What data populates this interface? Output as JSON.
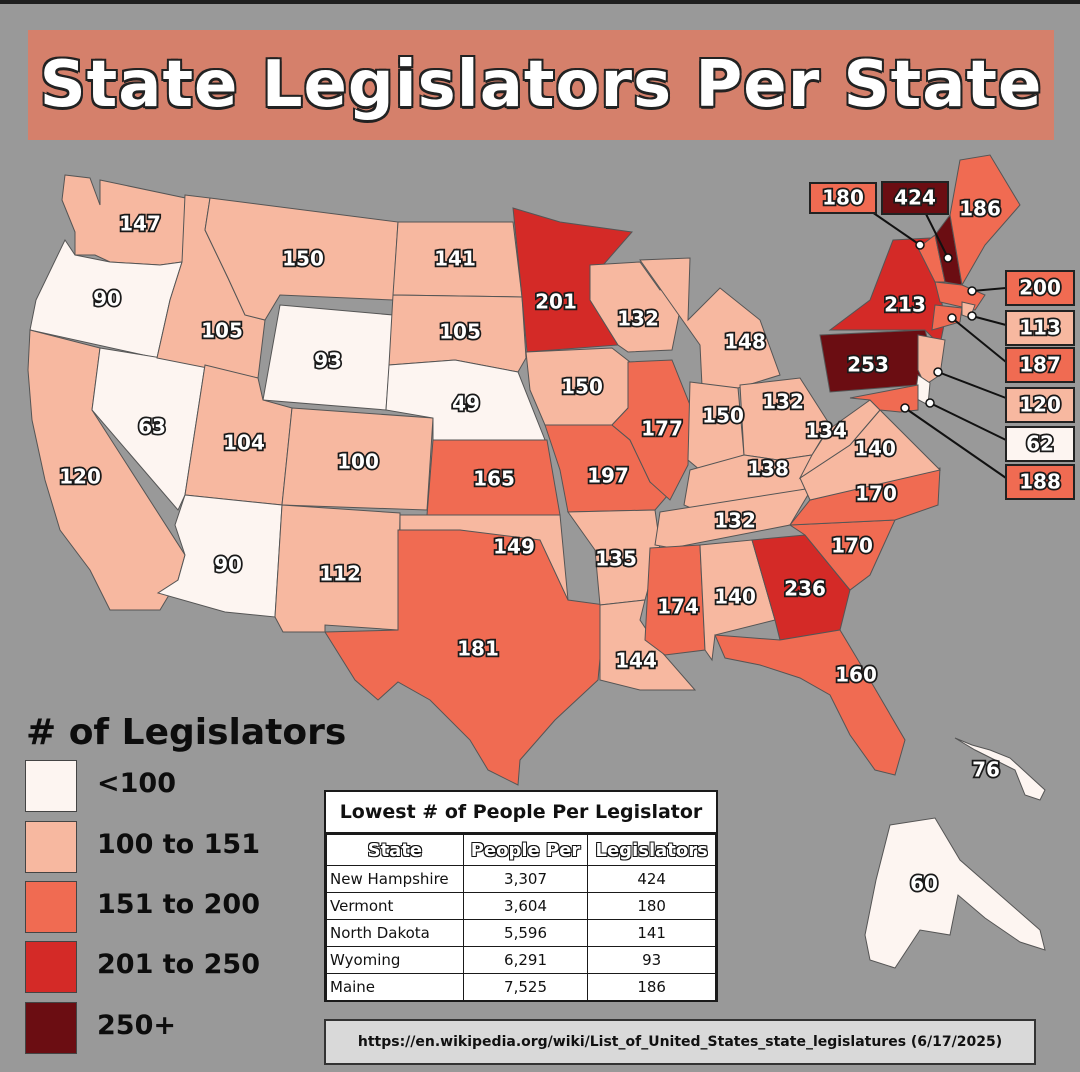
{
  "title": "State Legislators Per State",
  "colors": {
    "background": "#999999",
    "title_band": "#d5806b",
    "bin_lt100": "#fdf5f1",
    "bin_100_151": "#f7b8a0",
    "bin_151_200": "#f06b52",
    "bin_201_250": "#d42a27",
    "bin_250plus": "#6b0d12"
  },
  "legend": {
    "title": "# of Legislators",
    "items": [
      {
        "label": "<100",
        "color": "#fdf5f1"
      },
      {
        "label": "100 to 151",
        "color": "#f7b8a0"
      },
      {
        "label": "151 to 200",
        "color": "#f06b52"
      },
      {
        "label": "201 to 250",
        "color": "#d42a27"
      },
      {
        "label": "250+",
        "color": "#6b0d12"
      }
    ]
  },
  "chart_data": {
    "type": "choropleth",
    "title": "State Legislators Per State",
    "values": {
      "WA": 147,
      "OR": 90,
      "CA": 120,
      "NV": 63,
      "ID": 105,
      "MT": 150,
      "WY": 93,
      "UT": 104,
      "AZ": 90,
      "CO": 100,
      "NM": 112,
      "ND": 141,
      "SD": 105,
      "NE": 49,
      "KS": 165,
      "OK": 149,
      "TX": 181,
      "MN": 201,
      "IA": 150,
      "MO": 197,
      "AR": 135,
      "LA": 144,
      "WI": 132,
      "IL": 177,
      "MI": 148,
      "IN": 150,
      "OH": 132,
      "KY": 138,
      "TN": 132,
      "MS": 174,
      "AL": 140,
      "GA": 236,
      "FL": 160,
      "SC": 170,
      "NC": 170,
      "VA": 140,
      "WV": 134,
      "PA": 253,
      "NY": 213,
      "VT": 180,
      "NH": 424,
      "ME": 186,
      "MA": 200,
      "RI": 113,
      "CT": 187,
      "NJ": 120,
      "DE": 62,
      "MD": 188,
      "AK": 60,
      "HI": 76
    },
    "callouts": [
      "180",
      "424",
      "200",
      "113",
      "187",
      "120",
      "62",
      "188"
    ]
  },
  "table": {
    "title": "Lowest # of People Per Legislator",
    "headers": [
      "State",
      "People Per",
      "Legislators"
    ],
    "rows": [
      [
        "New Hampshire",
        "3,307",
        "424"
      ],
      [
        "Vermont",
        "3,604",
        "180"
      ],
      [
        "North Dakota",
        "5,596",
        "141"
      ],
      [
        "Wyoming",
        "6,291",
        "93"
      ],
      [
        "Maine",
        "7,525",
        "186"
      ]
    ]
  },
  "source": "https://en.wikipedia.org/wiki/List_of_United_States_state_legislatures (6/17/2025)"
}
